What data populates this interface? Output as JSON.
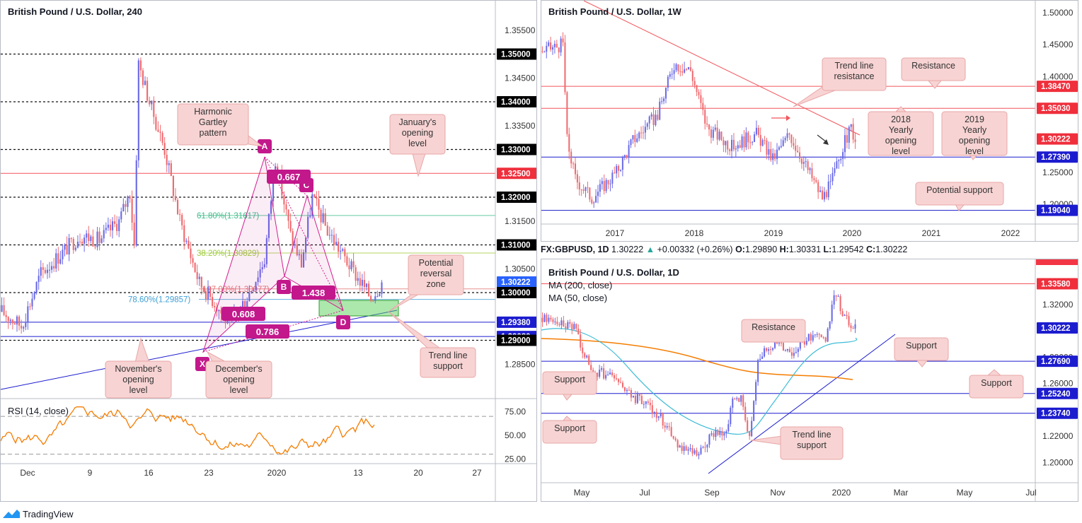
{
  "footer": {
    "brand": "TradingView"
  },
  "info_line": {
    "symbol": "FX:GBPUSD, 1D",
    "price": "1.30222",
    "change": "+0.00332 (+0.26%)",
    "o_label": "O:",
    "o_val": "1.29890",
    "h_label": "H:",
    "h_val": "1.30331",
    "l_label": "L:",
    "l_val": "1.29542",
    "c_label": "C:",
    "c_val": "1.30222"
  },
  "colors": {
    "red_line": "#f2545b",
    "blue_line": "#1c1ccf",
    "up_candle": "#6b6be6",
    "down_candle": "#ef6b70",
    "rsi": "#f57c00",
    "ma200": "#f57c00",
    "ma50": "#3ebcd6",
    "harmonic": "#d21c8e",
    "callout_bg": "#f8d3d3"
  },
  "chart_data": [
    {
      "id": "h4",
      "type": "candlestick",
      "title": "British Pound / U.S. Dollar, 240",
      "ylim": [
        1.28,
        1.36
      ],
      "y_ticks": [
        "1.35500",
        "1.35000",
        "1.34500",
        "1.34000",
        "1.33500",
        "1.33000",
        "1.32500",
        "1.32000",
        "1.31500",
        "1.31000",
        "1.30500",
        "1.30222",
        "1.30000",
        "1.29380",
        "1.29080",
        "1.29000",
        "1.28500"
      ],
      "x_ticks": [
        "Dec",
        "9",
        "16",
        "23",
        "2020",
        "13",
        "20",
        "27"
      ],
      "dotted_levels": [
        1.35,
        1.34,
        1.33,
        1.32,
        1.31,
        1.3,
        1.29
      ],
      "red_levels": [
        1.325
      ],
      "blue_levels": [
        1.2938,
        1.2908
      ],
      "highlighted_price_labels": [
        {
          "text": "1.35000",
          "color": "#000000",
          "value": 1.35
        },
        {
          "text": "1.34000",
          "color": "#000000",
          "value": 1.34
        },
        {
          "text": "1.33000",
          "color": "#000000",
          "value": 1.33
        },
        {
          "text": "1.32500",
          "color": "#ef2f3c",
          "value": 1.325
        },
        {
          "text": "1.32000",
          "color": "#000000",
          "value": 1.32
        },
        {
          "text": "1.31000",
          "color": "#000000",
          "value": 1.31
        },
        {
          "text": "1.30222",
          "color": "#2962ff",
          "value": 1.30222
        },
        {
          "text": "1.30000",
          "color": "#000000",
          "value": 1.3
        },
        {
          "text": "1.29380",
          "color": "#1c1ccf",
          "value": 1.2938
        },
        {
          "text": "1.29080",
          "color": "#1c1ccf",
          "value": 1.2908
        },
        {
          "text": "1.29000",
          "color": "#000000",
          "value": 1.29
        }
      ],
      "fib_labels": [
        {
          "text": "61.80%(1.31617)",
          "value": 1.31617,
          "color": "#3ebc8a"
        },
        {
          "text": "38.20%(1.30829)",
          "value": 1.30829,
          "color": "#9ecb3c"
        },
        {
          "text": "78.60%(1.29857)",
          "value": 1.29857,
          "color": "#3e9ed6"
        },
        {
          "text": "127.00%(1.30077)",
          "value": 1.30077,
          "color": "#e57373"
        }
      ],
      "harmonic_points": [
        "X",
        "A",
        "B",
        "C",
        "D"
      ],
      "harmonic_ratios": [
        "0.667",
        "1.438",
        "0.608",
        "0.786"
      ],
      "annotations": [
        "Harmonic Gartley pattern",
        "January's opening level",
        "Potential reversal zone",
        "Trend line support",
        "November's opening level",
        "December's opening level"
      ],
      "rsi": {
        "label": "RSI (14, close)",
        "ticks": [
          "75.00",
          "50.00",
          "25.00"
        ],
        "ylim": [
          20,
          85
        ],
        "bands": [
          70,
          30
        ]
      }
    },
    {
      "id": "w1",
      "type": "candlestick",
      "title": "British Pound / U.S. Dollar, 1W",
      "ylim": [
        1.18,
        1.51
      ],
      "y_ticks": [
        "1.50000",
        "1.45000",
        "1.40000",
        "1.38470",
        "1.35030",
        "1.30222",
        "1.27390",
        "1.25000",
        "1.20000",
        "1.19040"
      ],
      "x_ticks": [
        "2017",
        "2018",
        "2019",
        "2020",
        "2021",
        "2022"
      ],
      "red_levels": [
        1.3847,
        1.3503
      ],
      "blue_levels": [
        1.2739,
        1.1904
      ],
      "highlighted_price_labels": [
        {
          "text": "1.38470",
          "color": "#ef2f3c",
          "value": 1.3847
        },
        {
          "text": "1.35030",
          "color": "#ef2f3c",
          "value": 1.3503
        },
        {
          "text": "1.30222",
          "color": "#ef2f3c",
          "value": 1.30222
        },
        {
          "text": "1.27390",
          "color": "#1c1ccf",
          "value": 1.2739
        },
        {
          "text": "1.19040",
          "color": "#1c1ccf",
          "value": 1.1904
        }
      ],
      "annotations": [
        "Trend line resistance",
        "Resistance",
        "2018 Yearly opening level",
        "2019 Yearly opening level",
        "Potential support"
      ]
    },
    {
      "id": "d1",
      "type": "candlestick",
      "title": "British Pound / U.S. Dollar, 1D",
      "legend": [
        "MA (200, close)",
        "MA (50, close)"
      ],
      "ylim": [
        1.19,
        1.35
      ],
      "y_ticks": [
        "1.33580",
        "1.32000",
        "1.30222",
        "1.28000",
        "1.27690",
        "1.26000",
        "1.25240",
        "1.23740",
        "1.22000",
        "1.20000"
      ],
      "x_ticks": [
        "May",
        "Jul",
        "Sep",
        "Nov",
        "2020",
        "Mar",
        "May",
        "Jul"
      ],
      "red_levels": [
        1.3358
      ],
      "blue_levels": [
        1.2769,
        1.2524,
        1.2374
      ],
      "highlighted_price_labels": [
        {
          "text": "1.33580",
          "color": "#ef2f3c",
          "value": 1.3358
        },
        {
          "text": "1.30222",
          "color": "#1c1ccf",
          "value": 1.30222
        },
        {
          "text": "1.27690",
          "color": "#1c1ccf",
          "value": 1.2769
        },
        {
          "text": "1.25240",
          "color": "#1c1ccf",
          "value": 1.2524
        },
        {
          "text": "1.23740",
          "color": "#1c1ccf",
          "value": 1.2374
        }
      ],
      "annotations": [
        "Resistance",
        "Support",
        "Support",
        "Support",
        "Support",
        "Trend line support"
      ]
    }
  ]
}
